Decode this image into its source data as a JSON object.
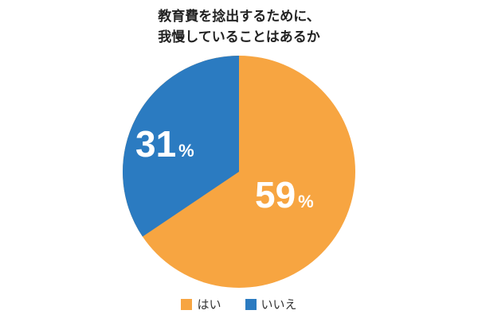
{
  "title": {
    "line1": "教育費を捻出するために、",
    "line2": "我慢していることはあるか"
  },
  "labels": {
    "yes_num": "59",
    "no_num": "31",
    "pct": "%"
  },
  "legend": {
    "yes": "はい",
    "no": "いいえ"
  },
  "colors": {
    "yes": "#F7A541",
    "no": "#2B7BC1"
  },
  "chart_data": {
    "type": "pie",
    "title": "教育費を捻出するために、我慢していることはあるか",
    "categories": [
      "はい",
      "いいえ"
    ],
    "values": [
      59,
      31
    ],
    "unit": "%",
    "colors": [
      "#F7A541",
      "#2B7BC1"
    ],
    "start_angle": "12 o'clock, clockwise",
    "legend_position": "bottom"
  }
}
